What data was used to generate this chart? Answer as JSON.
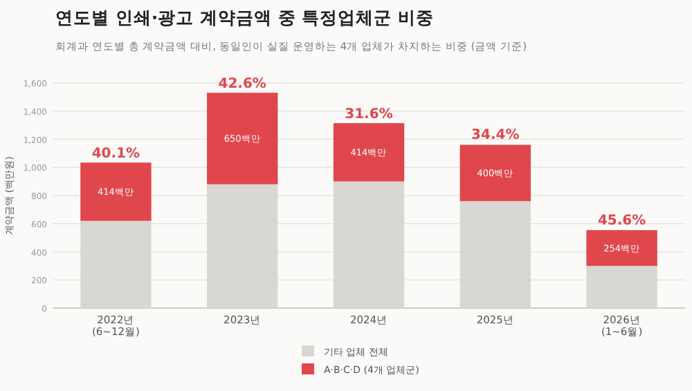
{
  "chart_data": {
    "type": "bar",
    "stacked": true,
    "title": "연도별 인쇄·광고 계약금액 중 특정업체군 비중",
    "subtitle": "회계과 연도별 총 계약금액 대비, 동일인이 실질 운영하는 4개 업체가 차지하는 비중 (금액 기준)",
    "ylabel": "계약금액 (백만원)",
    "categories": [
      "2022년\n(6~12월)",
      "2023년",
      "2024년",
      "2025년",
      "2026년\n(1~6월)"
    ],
    "series": [
      {
        "name": "기타 업체 전체",
        "color": "#d9d7d2",
        "values": [
          620,
          880,
          900,
          760,
          300
        ]
      },
      {
        "name": "A·B·C·D (4개 업체군)",
        "color": "#e0474c",
        "values": [
          414,
          650,
          414,
          400,
          254
        ],
        "value_labels": [
          "414백만",
          "650백만",
          "414백만",
          "400백만",
          "254백만"
        ]
      }
    ],
    "annotations": [
      {
        "text": "40.1%",
        "x": "2022년\n(6~12월)",
        "y": 1032
      },
      {
        "text": "42.6%",
        "x": "2023년",
        "y": 1526
      },
      {
        "text": "31.6%",
        "x": "2024년",
        "y": 1310
      },
      {
        "text": "34.4%",
        "x": "2025년",
        "y": 1163
      },
      {
        "text": "45.6%",
        "x": "2026년\n(1~6월)",
        "y": 557
      }
    ],
    "ylim": [
      0,
      1600
    ],
    "yticks": [
      0,
      200,
      400,
      600,
      800,
      {
        "value": 1000,
        "label": "1,000"
      },
      {
        "value": 1200,
        "label": "1,200"
      },
      {
        "value": 1400,
        "label": "1,400"
      },
      {
        "value": 1600,
        "label": "1,600"
      }
    ],
    "grid": "y",
    "legend": "bottom"
  }
}
